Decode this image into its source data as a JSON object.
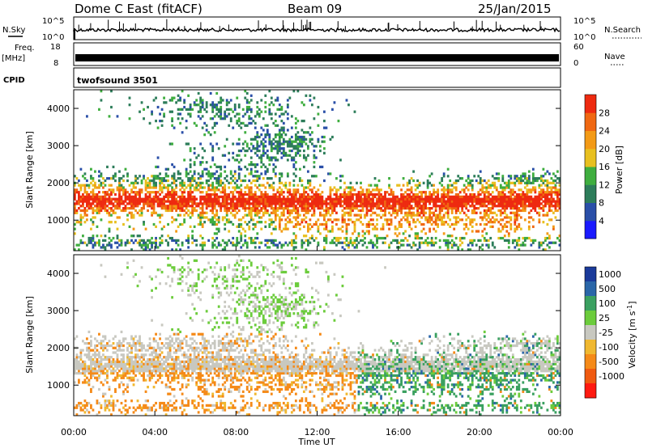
{
  "header": {
    "station": "Dome C East (fitACF)",
    "beam": "Beam 09",
    "date": "25/Jan/2015"
  },
  "strips": {
    "nsky_label": "N.Sky",
    "nsky_tick_top": "10^5",
    "nsky_tick_bottom": "10^0",
    "nsearch_label": "N.Search",
    "freq_label_top": "Freq.",
    "freq_label_unit": "[MHz]",
    "freq_tick_top": "18",
    "freq_tick_bottom": "8",
    "nave_tick_top": "60",
    "nave_tick_bottom": "0",
    "nave_label": "Nave",
    "cpid_label": "CPID",
    "cpid_value": "twofsound 3501"
  },
  "colors": {
    "power": [
      "#1a1aff",
      "#2a4fa8",
      "#2d7d5a",
      "#3fae3f",
      "#e8c020",
      "#f39a16",
      "#f06812",
      "#ee2a10"
    ],
    "velocity": [
      "#ff1a10",
      "#f05a10",
      "#f58a18",
      "#f0b830",
      "#c8c8c0",
      "#6ccc3c",
      "#3aa060",
      "#2a66a8",
      "#1a3a9a"
    ]
  },
  "chart_data": [
    {
      "type": "heatmap",
      "name": "power",
      "ylabel": "Slant Range [km]",
      "ylim": [
        180,
        4500
      ],
      "yticks": [
        "1000",
        "2000",
        "3000",
        "4000"
      ],
      "ytick_values": [
        1000,
        2000,
        3000,
        4000
      ],
      "colorbar": {
        "label": "Power [dB]",
        "ticks": [
          "4",
          "8",
          "12",
          "16",
          "20",
          "24",
          "28"
        ],
        "range": [
          0,
          32
        ]
      }
    },
    {
      "type": "heatmap",
      "name": "velocity",
      "ylabel": "Slant Range [km]",
      "ylim": [
        180,
        4500
      ],
      "yticks": [
        "1000",
        "2000",
        "3000",
        "4000"
      ],
      "ytick_values": [
        1000,
        2000,
        3000,
        4000
      ],
      "xlabel": "Time UT",
      "xticks": [
        "00:00",
        "04:00",
        "08:00",
        "12:00",
        "16:00",
        "20:00",
        "00:00"
      ],
      "xtick_hours": [
        0,
        4,
        8,
        12,
        16,
        20,
        24
      ],
      "colorbar": {
        "label": "Velocity [m s",
        "label_sup": "-1",
        "label_end": "]",
        "ticks": [
          "1000",
          "500",
          "100",
          "25",
          "-25",
          "-100",
          "-500",
          "-1000"
        ]
      }
    }
  ]
}
